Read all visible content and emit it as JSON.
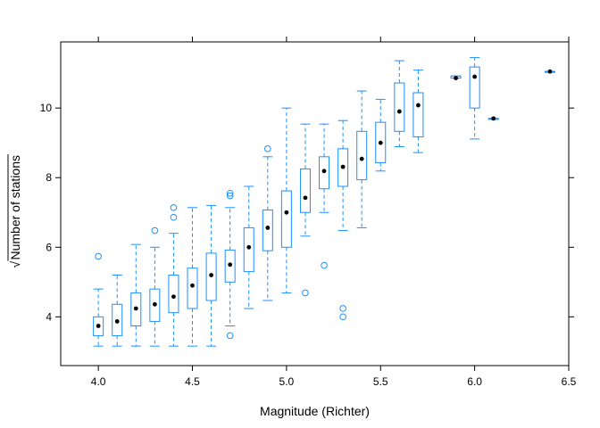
{
  "chart_data": {
    "type": "box",
    "title": "",
    "xlabel": "Magnitude (Richter)",
    "ylabel": "Number of stations",
    "ylabel_prefix": "√",
    "xlim": [
      3.8,
      6.5
    ],
    "ylim": [
      2.6,
      11.9
    ],
    "xticks": [
      4.0,
      4.5,
      5.0,
      5.5,
      6.0,
      6.5
    ],
    "xtick_labels": [
      "4.0",
      "4.5",
      "5.0",
      "5.5",
      "6.0",
      "6.5"
    ],
    "yticks": [
      4,
      6,
      8,
      10
    ],
    "ytick_labels": [
      "4",
      "6",
      "8",
      "10"
    ],
    "box_color": "#1e90ff",
    "median_color": "#000000",
    "boxes": [
      {
        "x": 4.0,
        "whisker_low": 3.16,
        "q1": 3.46,
        "median": 3.74,
        "q3": 4.0,
        "whisker_high": 4.8,
        "outliers": [
          5.74
        ]
      },
      {
        "x": 4.1,
        "whisker_low": 3.16,
        "q1": 3.46,
        "median": 3.87,
        "q3": 4.36,
        "whisker_high": 5.2,
        "outliers": []
      },
      {
        "x": 4.2,
        "whisker_low": 3.16,
        "q1": 3.74,
        "median": 4.24,
        "q3": 4.69,
        "whisker_high": 6.08,
        "outliers": []
      },
      {
        "x": 4.3,
        "whisker_low": 3.16,
        "q1": 3.87,
        "median": 4.36,
        "q3": 4.8,
        "whisker_high": 6.0,
        "outliers": [
          6.48
        ]
      },
      {
        "x": 4.4,
        "whisker_low": 3.16,
        "q1": 4.12,
        "median": 4.58,
        "q3": 5.2,
        "whisker_high": 6.4,
        "outliers": [
          6.86,
          7.14
        ]
      },
      {
        "x": 4.5,
        "whisker_low": 3.16,
        "q1": 4.24,
        "median": 4.9,
        "q3": 5.4,
        "whisker_high": 7.14,
        "outliers": []
      },
      {
        "x": 4.6,
        "whisker_low": 3.16,
        "q1": 4.47,
        "median": 5.2,
        "q3": 5.83,
        "whisker_high": 7.2,
        "outliers": []
      },
      {
        "x": 4.7,
        "whisker_low": 3.74,
        "q1": 5.0,
        "median": 5.5,
        "q3": 5.92,
        "whisker_high": 7.14,
        "outliers": [
          3.46,
          7.48,
          7.55
        ]
      },
      {
        "x": 4.8,
        "whisker_low": 4.24,
        "q1": 5.3,
        "median": 6.0,
        "q3": 6.56,
        "whisker_high": 7.75,
        "outliers": []
      },
      {
        "x": 4.9,
        "whisker_low": 4.47,
        "q1": 5.9,
        "median": 6.56,
        "q3": 7.07,
        "whisker_high": 8.6,
        "outliers": [
          8.83
        ]
      },
      {
        "x": 5.0,
        "whisker_low": 4.69,
        "q1": 6.0,
        "median": 7.0,
        "q3": 7.62,
        "whisker_high": 10.0,
        "outliers": []
      },
      {
        "x": 5.1,
        "whisker_low": 6.32,
        "q1": 7.0,
        "median": 7.42,
        "q3": 8.25,
        "whisker_high": 9.54,
        "outliers": [
          4.69
        ]
      },
      {
        "x": 5.2,
        "whisker_low": 7.0,
        "q1": 7.68,
        "median": 8.19,
        "q3": 8.6,
        "whisker_high": 9.54,
        "outliers": [
          5.48
        ]
      },
      {
        "x": 5.3,
        "whisker_low": 6.48,
        "q1": 7.75,
        "median": 8.31,
        "q3": 8.83,
        "whisker_high": 9.64,
        "outliers": [
          4.0,
          4.24
        ]
      },
      {
        "x": 5.4,
        "whisker_low": 6.56,
        "q1": 7.94,
        "median": 8.54,
        "q3": 9.33,
        "whisker_high": 10.49,
        "outliers": []
      },
      {
        "x": 5.5,
        "whisker_low": 8.19,
        "q1": 8.43,
        "median": 9.0,
        "q3": 9.59,
        "whisker_high": 10.25,
        "outliers": []
      },
      {
        "x": 5.6,
        "whisker_low": 8.89,
        "q1": 9.33,
        "median": 9.9,
        "q3": 10.72,
        "whisker_high": 11.36,
        "outliers": []
      },
      {
        "x": 5.7,
        "whisker_low": 8.72,
        "q1": 9.17,
        "median": 10.08,
        "q3": 10.44,
        "whisker_high": 11.09,
        "outliers": []
      },
      {
        "x": 5.9,
        "whisker_low": 10.86,
        "q1": 10.86,
        "median": 10.86,
        "q3": 10.92,
        "whisker_high": 10.92,
        "outliers": []
      },
      {
        "x": 6.0,
        "whisker_low": 9.11,
        "q1": 10.0,
        "median": 10.9,
        "q3": 11.18,
        "whisker_high": 11.45,
        "outliers": []
      },
      {
        "x": 6.1,
        "whisker_low": 9.7,
        "q1": 9.7,
        "median": 9.7,
        "q3": 9.7,
        "whisker_high": 9.7,
        "outliers": []
      },
      {
        "x": 6.4,
        "whisker_low": 11.05,
        "q1": 11.05,
        "median": 11.05,
        "q3": 11.05,
        "whisker_high": 11.05,
        "outliers": []
      }
    ]
  }
}
